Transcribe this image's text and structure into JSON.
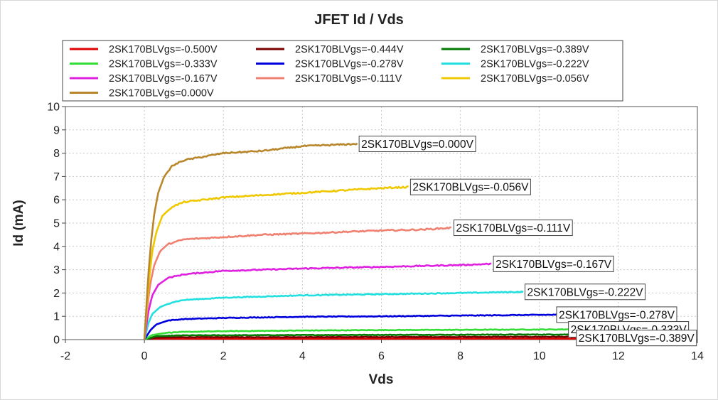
{
  "chart_data": {
    "type": "line",
    "title": "JFET Id / Vds",
    "xlabel": "Vds",
    "ylabel": "Id (mA)",
    "xlim": [
      -2,
      14
    ],
    "ylim": [
      0,
      10
    ],
    "xticks": [
      -2,
      0,
      2,
      4,
      6,
      8,
      10,
      12,
      14
    ],
    "yticks": [
      0,
      1,
      2,
      3,
      4,
      5,
      6,
      7,
      8,
      9,
      10
    ],
    "grid": true,
    "legend_position": "top",
    "series": [
      {
        "name": "2SK170BLVgs=-0.500V",
        "color": "#e00000",
        "x_end": 11.0,
        "points": [
          [
            0,
            0
          ],
          [
            0.3,
            0.02
          ],
          [
            1,
            0.03
          ],
          [
            5,
            0.04
          ],
          [
            11,
            0.04
          ]
        ]
      },
      {
        "name": "2SK170BLVgs=-0.444V",
        "color": "#7a0000",
        "x_end": 11.0,
        "points": [
          [
            0,
            0
          ],
          [
            0.3,
            0.08
          ],
          [
            1,
            0.1
          ],
          [
            5,
            0.11
          ],
          [
            11,
            0.12
          ]
        ]
      },
      {
        "name": "2SK170BLVgs=-0.389V",
        "color": "#007a00",
        "x_end": 11.0,
        "points": [
          [
            0,
            0
          ],
          [
            0.3,
            0.15
          ],
          [
            1,
            0.18
          ],
          [
            5,
            0.2
          ],
          [
            11,
            0.22
          ]
        ]
      },
      {
        "name": "2SK170BLVgs=-0.333V",
        "color": "#33dd33",
        "x_end": 10.9,
        "points": [
          [
            0,
            0
          ],
          [
            0.2,
            0.2
          ],
          [
            0.6,
            0.3
          ],
          [
            1,
            0.33
          ],
          [
            2,
            0.36
          ],
          [
            4,
            0.39
          ],
          [
            6,
            0.41
          ],
          [
            8,
            0.42
          ],
          [
            10.9,
            0.44
          ]
        ]
      },
      {
        "name": "2SK170BLVgs=-0.278V",
        "color": "#0000dd",
        "x_end": 10.6,
        "points": [
          [
            0,
            0
          ],
          [
            0.15,
            0.4
          ],
          [
            0.3,
            0.65
          ],
          [
            0.6,
            0.82
          ],
          [
            1,
            0.88
          ],
          [
            2,
            0.93
          ],
          [
            4,
            0.98
          ],
          [
            6,
            1.0
          ],
          [
            8,
            1.03
          ],
          [
            10.6,
            1.07
          ]
        ]
      },
      {
        "name": "2SK170BLVgs=-0.222V",
        "color": "#22e0e0",
        "x_end": 9.6,
        "points": [
          [
            0,
            0
          ],
          [
            0.1,
            0.7
          ],
          [
            0.2,
            1.1
          ],
          [
            0.4,
            1.4
          ],
          [
            0.7,
            1.6
          ],
          [
            1,
            1.7
          ],
          [
            2,
            1.8
          ],
          [
            4,
            1.9
          ],
          [
            6,
            1.95
          ],
          [
            8,
            2.0
          ],
          [
            9.6,
            2.05
          ]
        ]
      },
      {
        "name": "2SK170BLVgs=-0.167V",
        "color": "#e020e0",
        "x_end": 8.8,
        "points": [
          [
            0,
            0
          ],
          [
            0.1,
            1.2
          ],
          [
            0.2,
            1.9
          ],
          [
            0.35,
            2.35
          ],
          [
            0.6,
            2.65
          ],
          [
            1,
            2.8
          ],
          [
            2,
            2.95
          ],
          [
            3,
            3.0
          ],
          [
            4,
            3.05
          ],
          [
            6,
            3.12
          ],
          [
            8,
            3.2
          ],
          [
            8.8,
            3.25
          ]
        ]
      },
      {
        "name": "2SK170BLVgs=-0.111V",
        "color": "#f08070",
        "x_end": 7.8,
        "points": [
          [
            0,
            0
          ],
          [
            0.08,
            1.5
          ],
          [
            0.15,
            2.4
          ],
          [
            0.25,
            3.2
          ],
          [
            0.4,
            3.8
          ],
          [
            0.6,
            4.1
          ],
          [
            1,
            4.3
          ],
          [
            2,
            4.4
          ],
          [
            3,
            4.5
          ],
          [
            4,
            4.55
          ],
          [
            5,
            4.62
          ],
          [
            6,
            4.68
          ],
          [
            7,
            4.72
          ],
          [
            7.8,
            4.8
          ]
        ]
      },
      {
        "name": "2SK170BLVgs=-0.056V",
        "color": "#f0c800",
        "x_end": 6.7,
        "points": [
          [
            0,
            0
          ],
          [
            0.05,
            1.2
          ],
          [
            0.12,
            2.6
          ],
          [
            0.2,
            3.8
          ],
          [
            0.3,
            4.6
          ],
          [
            0.45,
            5.3
          ],
          [
            0.7,
            5.7
          ],
          [
            1,
            5.9
          ],
          [
            1.5,
            6.0
          ],
          [
            2,
            6.1
          ],
          [
            3,
            6.2
          ],
          [
            4,
            6.3
          ],
          [
            5,
            6.4
          ],
          [
            6,
            6.5
          ],
          [
            6.7,
            6.55
          ]
        ]
      },
      {
        "name": "2SK170BLVgs=0.000V",
        "color": "#b8862b",
        "x_end": 5.4,
        "points": [
          [
            0,
            0
          ],
          [
            0.05,
            1.4
          ],
          [
            0.1,
            2.8
          ],
          [
            0.17,
            4.2
          ],
          [
            0.25,
            5.4
          ],
          [
            0.35,
            6.3
          ],
          [
            0.5,
            7.0
          ],
          [
            0.7,
            7.45
          ],
          [
            1,
            7.7
          ],
          [
            1.5,
            7.85
          ],
          [
            2,
            8.0
          ],
          [
            3,
            8.1
          ],
          [
            4,
            8.3
          ],
          [
            5.4,
            8.4
          ]
        ]
      }
    ],
    "annotations": [
      {
        "text": "2SK170BLVgs=0.000V",
        "x": 5.4,
        "y": 8.4
      },
      {
        "text": "2SK170BLVgs=-0.056V",
        "x": 6.7,
        "y": 6.55
      },
      {
        "text": "2SK170BLVgs=-0.111V",
        "x": 7.8,
        "y": 4.8
      },
      {
        "text": "2SK170BLVgs=-0.167V",
        "x": 8.8,
        "y": 3.25
      },
      {
        "text": "2SK170BLVgs=-0.222V",
        "x": 9.6,
        "y": 2.05
      },
      {
        "text": "2SK170BLVgs=-0.278V",
        "x": 10.4,
        "y": 1.07
      },
      {
        "text": "2SK170BLVgs=-0.333V",
        "x": 10.7,
        "y": 0.44
      },
      {
        "text": "2SK170BLVgs=-0.389V",
        "x": 10.9,
        "y": 0.07
      }
    ]
  }
}
